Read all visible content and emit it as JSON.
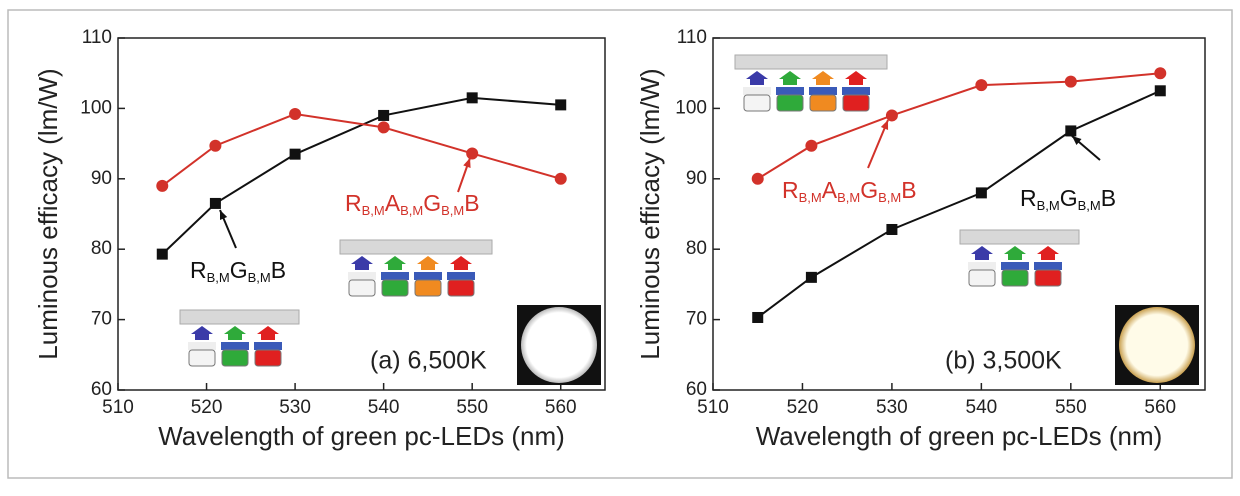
{
  "chart_data": [
    {
      "type": "line",
      "panel_label": "(a) 6,500K",
      "xlabel": "Wavelength of green pc-LEDs (nm)",
      "ylabel": "Luminous efficacy (lm/W)",
      "x": [
        515,
        521,
        530,
        540,
        550,
        560
      ],
      "xlim": [
        510,
        565
      ],
      "xticks": [
        510,
        520,
        530,
        540,
        550,
        560
      ],
      "ylim": [
        60,
        110
      ],
      "yticks": [
        60,
        70,
        80,
        90,
        100,
        110
      ],
      "series": [
        {
          "label": [
            "R",
            "B,M",
            "G",
            "B,M",
            "B"
          ],
          "color": "#111111",
          "marker": "square",
          "values": [
            79.3,
            86.5,
            93.5,
            99,
            101.5,
            100.5
          ]
        },
        {
          "label": [
            "R",
            "B,M",
            "A",
            "B,M",
            "G",
            "B,M",
            "B"
          ],
          "color": "#d2322a",
          "marker": "circle",
          "values": [
            89,
            94.7,
            99.2,
            97.3,
            93.6,
            90
          ]
        }
      ]
    },
    {
      "type": "line",
      "panel_label": "(b) 3,500K",
      "xlabel": "Wavelength of green pc-LEDs (nm)",
      "ylabel": "Luminous efficacy (lm/W)",
      "x": [
        515,
        521,
        530,
        540,
        550,
        560
      ],
      "xlim": [
        510,
        565
      ],
      "xticks": [
        510,
        520,
        530,
        540,
        550,
        560
      ],
      "ylim": [
        60,
        110
      ],
      "yticks": [
        60,
        70,
        80,
        90,
        100,
        110
      ],
      "series": [
        {
          "label": [
            "R",
            "B,M",
            "G",
            "B,M",
            "B"
          ],
          "color": "#111111",
          "marker": "square",
          "values": [
            70.3,
            76,
            82.8,
            88,
            96.8,
            102.5
          ]
        },
        {
          "label": [
            "R",
            "B,M",
            "A",
            "B,M",
            "G",
            "B,M",
            "B"
          ],
          "color": "#d2322a",
          "marker": "circle",
          "values": [
            90,
            94.7,
            99,
            103.3,
            103.8,
            105
          ]
        }
      ]
    }
  ]
}
